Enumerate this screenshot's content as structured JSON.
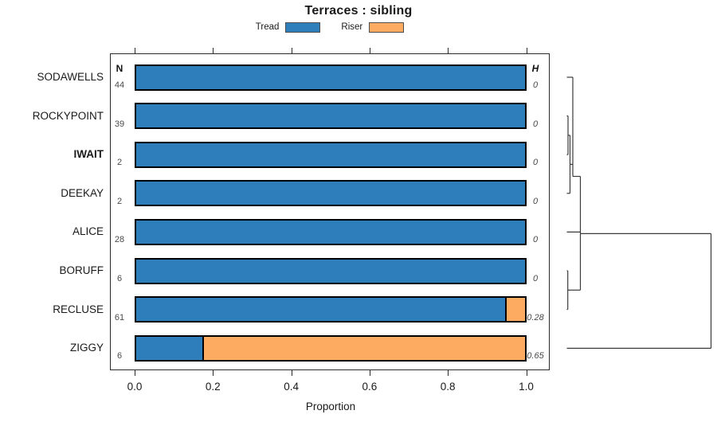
{
  "title": "Terraces : sibling",
  "legend": {
    "items": [
      {
        "label": "Tread",
        "color": "#2e7ebc"
      },
      {
        "label": "Riser",
        "color": "#fcab60"
      }
    ]
  },
  "columns": {
    "n_header": "N",
    "h_header": "H"
  },
  "xaxis": {
    "label": "Proportion",
    "ticks": [
      {
        "label": "0.0",
        "value": 0
      },
      {
        "label": "0.2",
        "value": 0.2
      },
      {
        "label": "0.4",
        "value": 0.4
      },
      {
        "label": "0.6",
        "value": 0.6
      },
      {
        "label": "0.8",
        "value": 0.8
      },
      {
        "label": "1.0",
        "value": 1
      }
    ]
  },
  "chart_data": {
    "type": "bar",
    "subtype": "horizontal-stacked-proportion-with-dendrogram",
    "title": "Terraces : sibling",
    "xlabel": "Proportion",
    "xlim": [
      0,
      1
    ],
    "grid": false,
    "legend_position": "top",
    "categories": [
      "SODAWELLS",
      "ROCKYPOINT",
      "IWAIT",
      "DEEKAY",
      "ALICE",
      "BORUFF",
      "RECLUSE",
      "ZIGGY"
    ],
    "bold_category": "IWAIT",
    "n_column_label": "N",
    "h_column_label": "H",
    "n_values": [
      44,
      39,
      2,
      2,
      28,
      6,
      61,
      6
    ],
    "h_values": [
      "0",
      "0",
      "0",
      "0",
      "0",
      "0",
      "0.28",
      "0.65"
    ],
    "series": [
      {
        "name": "Tread",
        "color": "#2e7ebc",
        "values": [
          1.0,
          1.0,
          1.0,
          1.0,
          1.0,
          1.0,
          0.95,
          0.17
        ]
      },
      {
        "name": "Riser",
        "color": "#fcab60",
        "values": [
          0.0,
          0.0,
          0.0,
          0.0,
          0.0,
          0.0,
          0.05,
          0.83
        ]
      }
    ],
    "dendrogram": {
      "segments": [
        [
          711.5,
          97,
          719,
          97
        ],
        [
          719,
          97,
          719,
          206.4
        ],
        [
          711.5,
          145.6,
          713,
          145.6
        ],
        [
          713,
          145.6,
          713,
          194.2
        ],
        [
          711.5,
          194.2,
          713,
          194.2
        ],
        [
          713,
          169.9,
          715.5,
          169.9
        ],
        [
          715.5,
          169.9,
          715.5,
          242.8
        ],
        [
          711.5,
          242.8,
          715.5,
          242.8
        ],
        [
          715.5,
          206.4,
          719,
          206.4
        ],
        [
          719,
          206.4,
          719,
          221.5
        ],
        [
          719,
          221.5,
          728.5,
          221.5
        ],
        [
          728.5,
          221.5,
          728.5,
          364.3
        ],
        [
          711.5,
          291.4,
          728.5,
          291.4
        ],
        [
          728.5,
          293.4,
          892.5,
          293.4
        ],
        [
          711.5,
          340,
          712.7,
          340
        ],
        [
          712.7,
          340,
          712.7,
          388.6
        ],
        [
          711.5,
          388.6,
          712.7,
          388.6
        ],
        [
          712.7,
          364.3,
          728.5,
          364.3
        ],
        [
          892.5,
          293.4,
          892.5,
          437.4
        ],
        [
          711.5,
          437.4,
          892.5,
          437.4
        ]
      ]
    }
  },
  "colors": {
    "bar_border": "#000000",
    "axis": "#2b2b2b",
    "dendro_line": "#3a3a3a",
    "muted_text": "#4a4a4a"
  }
}
